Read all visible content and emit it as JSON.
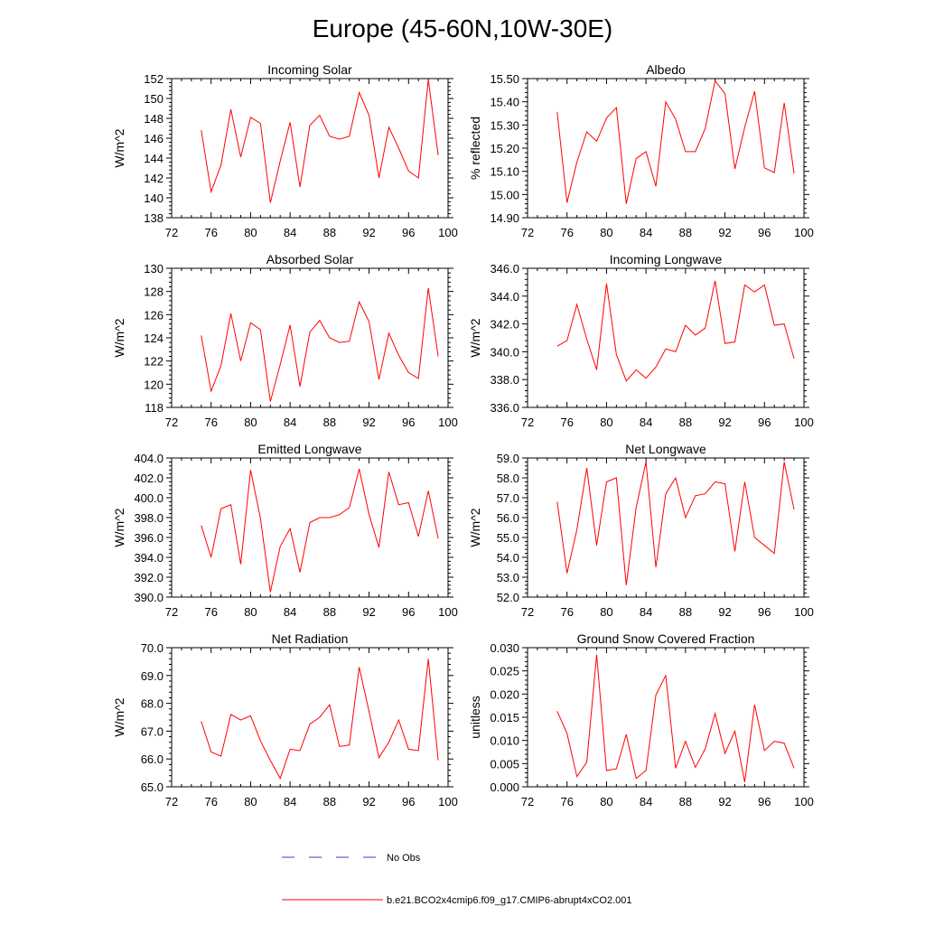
{
  "figure": {
    "title": "Europe (45-60N,10W-30E)",
    "legend": {
      "position": "bottom-center",
      "items": [
        {
          "label": "No Obs",
          "color": "#3b3bd6",
          "style": "dashed"
        },
        {
          "label": "b.e21.BCO2x4cmip6.f09_g17.CMIP6-abrupt4xCO2.001",
          "color": "#ff0000",
          "style": "solid"
        }
      ]
    }
  },
  "chart_data": [
    {
      "type": "line",
      "title": "Incoming Solar",
      "ylabel": "W/m^2",
      "xlabel": "",
      "xlim": [
        72,
        100
      ],
      "xticks": [
        72,
        76,
        80,
        84,
        88,
        92,
        96,
        100
      ],
      "ylim": [
        138,
        152
      ],
      "yticks": [
        138,
        140,
        142,
        144,
        146,
        148,
        150,
        152
      ],
      "ytick_labels": [
        "138",
        "140",
        "142",
        "144",
        "146",
        "148",
        "150",
        "152"
      ],
      "series": [
        {
          "name": "b.e21.BCO2x4cmip6.f09_g17.CMIP6-abrupt4xCO2.001",
          "color": "#ff0000",
          "x": [
            75,
            76,
            77,
            78,
            79,
            80,
            81,
            82,
            83,
            84,
            85,
            86,
            87,
            88,
            89,
            90,
            91,
            92,
            93,
            94,
            95,
            96,
            97,
            98,
            99
          ],
          "y": [
            146.8,
            140.6,
            143.3,
            148.9,
            144.1,
            148.1,
            147.5,
            139.5,
            143.7,
            147.6,
            141.1,
            147.3,
            148.3,
            146.2,
            145.9,
            146.2,
            150.6,
            148.3,
            142.0,
            147.1,
            145.0,
            142.7,
            142.0,
            151.9,
            144.3
          ]
        }
      ]
    },
    {
      "type": "line",
      "title": "Albedo",
      "ylabel": "% reflected",
      "xlabel": "",
      "xlim": [
        72,
        100
      ],
      "xticks": [
        72,
        76,
        80,
        84,
        88,
        92,
        96,
        100
      ],
      "ylim": [
        14.9,
        15.5
      ],
      "yticks": [
        14.9,
        15.0,
        15.1,
        15.2,
        15.3,
        15.4,
        15.5
      ],
      "ytick_labels": [
        "14.90",
        "15.00",
        "15.10",
        "15.20",
        "15.30",
        "15.40",
        "15.50"
      ],
      "series": [
        {
          "name": "b.e21.BCO2x4cmip6.f09_g17.CMIP6-abrupt4xCO2.001",
          "color": "#ff0000",
          "x": [
            75,
            76,
            77,
            78,
            79,
            80,
            81,
            82,
            83,
            84,
            85,
            86,
            87,
            88,
            89,
            90,
            91,
            92,
            93,
            94,
            95,
            96,
            97,
            98,
            99
          ],
          "y": [
            15.355,
            14.965,
            15.14,
            15.27,
            15.23,
            15.33,
            15.375,
            14.96,
            15.155,
            15.185,
            15.035,
            15.4,
            15.325,
            15.185,
            15.185,
            15.285,
            15.49,
            15.435,
            15.11,
            15.29,
            15.445,
            15.115,
            15.095,
            15.395,
            15.09
          ]
        }
      ]
    },
    {
      "type": "line",
      "title": "Absorbed Solar",
      "ylabel": "W/m^2",
      "xlabel": "",
      "xlim": [
        72,
        100
      ],
      "xticks": [
        72,
        76,
        80,
        84,
        88,
        92,
        96,
        100
      ],
      "ylim": [
        118,
        130
      ],
      "yticks": [
        118,
        120,
        122,
        124,
        126,
        128,
        130
      ],
      "ytick_labels": [
        "118",
        "120",
        "122",
        "124",
        "126",
        "128",
        "130"
      ],
      "series": [
        {
          "name": "b.e21.BCO2x4cmip6.f09_g17.CMIP6-abrupt4xCO2.001",
          "color": "#ff0000",
          "x": [
            75,
            76,
            77,
            78,
            79,
            80,
            81,
            82,
            83,
            84,
            85,
            86,
            87,
            88,
            89,
            90,
            91,
            92,
            93,
            94,
            95,
            96,
            97,
            98,
            99
          ],
          "y": [
            124.2,
            119.4,
            121.6,
            126.1,
            122.0,
            125.3,
            124.7,
            118.5,
            121.7,
            125.1,
            119.8,
            124.5,
            125.5,
            124.0,
            123.6,
            123.7,
            127.1,
            125.4,
            120.4,
            124.4,
            122.5,
            121.0,
            120.5,
            128.3,
            122.4
          ]
        }
      ]
    },
    {
      "type": "line",
      "title": "Incoming Longwave",
      "ylabel": "W/m^2",
      "xlabel": "",
      "xlim": [
        72,
        100
      ],
      "xticks": [
        72,
        76,
        80,
        84,
        88,
        92,
        96,
        100
      ],
      "ylim": [
        336,
        346
      ],
      "yticks": [
        336,
        338,
        340,
        342,
        344,
        346
      ],
      "ytick_labels": [
        "336.0",
        "338.0",
        "340.0",
        "342.0",
        "344.0",
        "346.0"
      ],
      "series": [
        {
          "name": "b.e21.BCO2x4cmip6.f09_g17.CMIP6-abrupt4xCO2.001",
          "color": "#ff0000",
          "x": [
            75,
            76,
            77,
            78,
            79,
            80,
            81,
            82,
            83,
            84,
            85,
            86,
            87,
            88,
            89,
            90,
            91,
            92,
            93,
            94,
            95,
            96,
            97,
            98,
            99
          ],
          "y": [
            340.4,
            340.8,
            343.4,
            340.9,
            338.7,
            344.9,
            339.8,
            337.9,
            338.7,
            338.1,
            338.9,
            340.2,
            340.0,
            341.9,
            341.2,
            341.7,
            345.1,
            340.6,
            340.7,
            344.8,
            344.3,
            344.8,
            341.9,
            342.0,
            339.5
          ]
        }
      ]
    },
    {
      "type": "line",
      "title": "Emitted Longwave",
      "ylabel": "W/m^2",
      "xlabel": "",
      "xlim": [
        72,
        100
      ],
      "xticks": [
        72,
        76,
        80,
        84,
        88,
        92,
        96,
        100
      ],
      "ylim": [
        390,
        404
      ],
      "yticks": [
        390,
        392,
        394,
        396,
        398,
        400,
        402,
        404
      ],
      "ytick_labels": [
        "390.0",
        "392.0",
        "394.0",
        "396.0",
        "398.0",
        "400.0",
        "402.0",
        "404.0"
      ],
      "series": [
        {
          "name": "b.e21.BCO2x4cmip6.f09_g17.CMIP6-abrupt4xCO2.001",
          "color": "#ff0000",
          "x": [
            75,
            76,
            77,
            78,
            79,
            80,
            81,
            82,
            83,
            84,
            85,
            86,
            87,
            88,
            89,
            90,
            91,
            92,
            93,
            94,
            95,
            96,
            97,
            98,
            99
          ],
          "y": [
            397.2,
            394.0,
            398.9,
            399.3,
            393.3,
            402.8,
            397.9,
            390.5,
            395.1,
            396.9,
            392.5,
            397.5,
            398.0,
            398.0,
            398.3,
            399.0,
            402.9,
            398.3,
            395.0,
            402.6,
            399.3,
            399.5,
            396.1,
            400.7,
            395.9
          ]
        }
      ]
    },
    {
      "type": "line",
      "title": "Net Longwave",
      "ylabel": "W/m^2",
      "xlabel": "",
      "xlim": [
        72,
        100
      ],
      "xticks": [
        72,
        76,
        80,
        84,
        88,
        92,
        96,
        100
      ],
      "ylim": [
        52,
        59
      ],
      "yticks": [
        52,
        53,
        54,
        55,
        56,
        57,
        58,
        59
      ],
      "ytick_labels": [
        "52.0",
        "53.0",
        "54.0",
        "55.0",
        "56.0",
        "57.0",
        "58.0",
        "59.0"
      ],
      "series": [
        {
          "name": "b.e21.BCO2x4cmip6.f09_g17.CMIP6-abrupt4xCO2.001",
          "color": "#ff0000",
          "x": [
            75,
            76,
            77,
            78,
            79,
            80,
            81,
            82,
            83,
            84,
            85,
            86,
            87,
            88,
            89,
            90,
            91,
            92,
            93,
            94,
            95,
            96,
            97,
            98,
            99
          ],
          "y": [
            56.8,
            53.2,
            55.4,
            58.5,
            54.6,
            57.8,
            58.0,
            52.6,
            56.5,
            58.8,
            53.5,
            57.2,
            58.0,
            56.0,
            57.1,
            57.2,
            57.8,
            57.7,
            54.3,
            57.8,
            55.0,
            54.6,
            54.2,
            58.8,
            56.4
          ]
        }
      ]
    },
    {
      "type": "line",
      "title": "Net Radiation",
      "ylabel": "W/m^2",
      "xlabel": "",
      "xlim": [
        72,
        100
      ],
      "xticks": [
        72,
        76,
        80,
        84,
        88,
        92,
        96,
        100
      ],
      "ylim": [
        65,
        70
      ],
      "yticks": [
        65,
        66,
        67,
        68,
        69,
        70
      ],
      "ytick_labels": [
        "65.0",
        "66.0",
        "67.0",
        "68.0",
        "69.0",
        "70.0"
      ],
      "series": [
        {
          "name": "b.e21.BCO2x4cmip6.f09_g17.CMIP6-abrupt4xCO2.001",
          "color": "#ff0000",
          "x": [
            75,
            76,
            77,
            78,
            79,
            80,
            81,
            82,
            83,
            84,
            85,
            86,
            87,
            88,
            89,
            90,
            91,
            92,
            93,
            94,
            95,
            96,
            97,
            98,
            99
          ],
          "y": [
            67.35,
            66.25,
            66.1,
            67.6,
            67.4,
            67.55,
            66.65,
            65.95,
            65.3,
            66.35,
            66.3,
            67.25,
            67.5,
            67.95,
            66.45,
            66.5,
            69.3,
            67.7,
            66.05,
            66.6,
            67.4,
            66.35,
            66.3,
            69.6,
            65.95
          ]
        }
      ]
    },
    {
      "type": "line",
      "title": "Ground Snow Covered Fraction",
      "ylabel": "unitless",
      "xlabel": "",
      "xlim": [
        72,
        100
      ],
      "xticks": [
        72,
        76,
        80,
        84,
        88,
        92,
        96,
        100
      ],
      "ylim": [
        0,
        0.03
      ],
      "yticks": [
        0,
        0.005,
        0.01,
        0.015,
        0.02,
        0.025,
        0.03
      ],
      "ytick_labels": [
        "0.000",
        "0.005",
        "0.010",
        "0.015",
        "0.020",
        "0.025",
        "0.030"
      ],
      "series": [
        {
          "name": "b.e21.BCO2x4cmip6.f09_g17.CMIP6-abrupt4xCO2.001",
          "color": "#ff0000",
          "x": [
            75,
            76,
            77,
            78,
            79,
            80,
            81,
            82,
            83,
            84,
            85,
            86,
            87,
            88,
            89,
            90,
            91,
            92,
            93,
            94,
            95,
            96,
            97,
            98,
            99
          ],
          "y": [
            0.0163,
            0.0115,
            0.0022,
            0.0053,
            0.0285,
            0.0035,
            0.0039,
            0.0113,
            0.0018,
            0.0035,
            0.0198,
            0.024,
            0.004,
            0.0098,
            0.0042,
            0.0082,
            0.0158,
            0.0072,
            0.012,
            0.001,
            0.0177,
            0.0078,
            0.0098,
            0.0094,
            0.004
          ]
        }
      ]
    }
  ]
}
